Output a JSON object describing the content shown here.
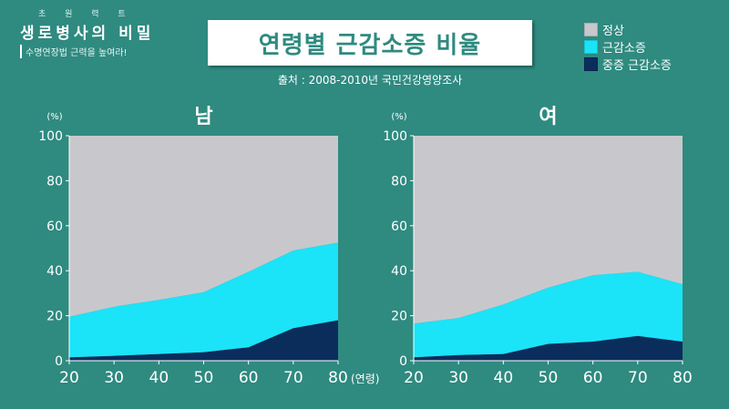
{
  "logo": {
    "top_text": "초 원 력 트",
    "main_text": "생로병사의 비밀",
    "sub_text": "수명연장법 근력을 높여라!"
  },
  "title": "연령별 근감소증 비율",
  "source": "출처 : 2008-2010년 국민건강영양조사",
  "legend": [
    {
      "label": "정상",
      "color": "#c8c8cc"
    },
    {
      "label": "근감소증",
      "color": "#1be3f8"
    },
    {
      "label": "중증 근감소증",
      "color": "#0a2d5c"
    }
  ],
  "chart_data": [
    {
      "type": "area",
      "title": "남",
      "y_unit": "(%)",
      "xlabel": "(연령)",
      "x": [
        20,
        30,
        40,
        50,
        60,
        70,
        80
      ],
      "xlim": [
        20,
        80
      ],
      "ylim": [
        0,
        100
      ],
      "yticks": [
        0,
        20,
        40,
        60,
        80,
        100
      ],
      "series": [
        {
          "name": "중증 근감소증",
          "values": [
            1.5,
            2.2,
            3,
            3.8,
            6,
            14.5,
            18
          ]
        },
        {
          "name": "근감소증",
          "values": [
            18,
            21.8,
            24,
            26.7,
            33.5,
            34.5,
            34.5
          ]
        },
        {
          "name": "정상",
          "values": [
            80.5,
            76,
            73,
            69.5,
            60.5,
            51,
            47.5
          ]
        }
      ]
    },
    {
      "type": "area",
      "title": "여",
      "y_unit": "(%)",
      "xlabel": "",
      "x": [
        20,
        30,
        40,
        50,
        60,
        70,
        80
      ],
      "xlim": [
        20,
        80
      ],
      "ylim": [
        0,
        100
      ],
      "yticks": [
        0,
        20,
        40,
        60,
        80,
        100
      ],
      "series": [
        {
          "name": "중증 근감소증",
          "values": [
            1.5,
            2.5,
            3,
            7.5,
            8.5,
            11,
            8.5
          ]
        },
        {
          "name": "근감소증",
          "values": [
            15,
            16.5,
            22,
            25,
            29.5,
            28.5,
            25.5
          ]
        },
        {
          "name": "정상",
          "values": [
            83.5,
            81,
            75,
            67.5,
            62,
            60.5,
            66
          ]
        }
      ]
    }
  ]
}
